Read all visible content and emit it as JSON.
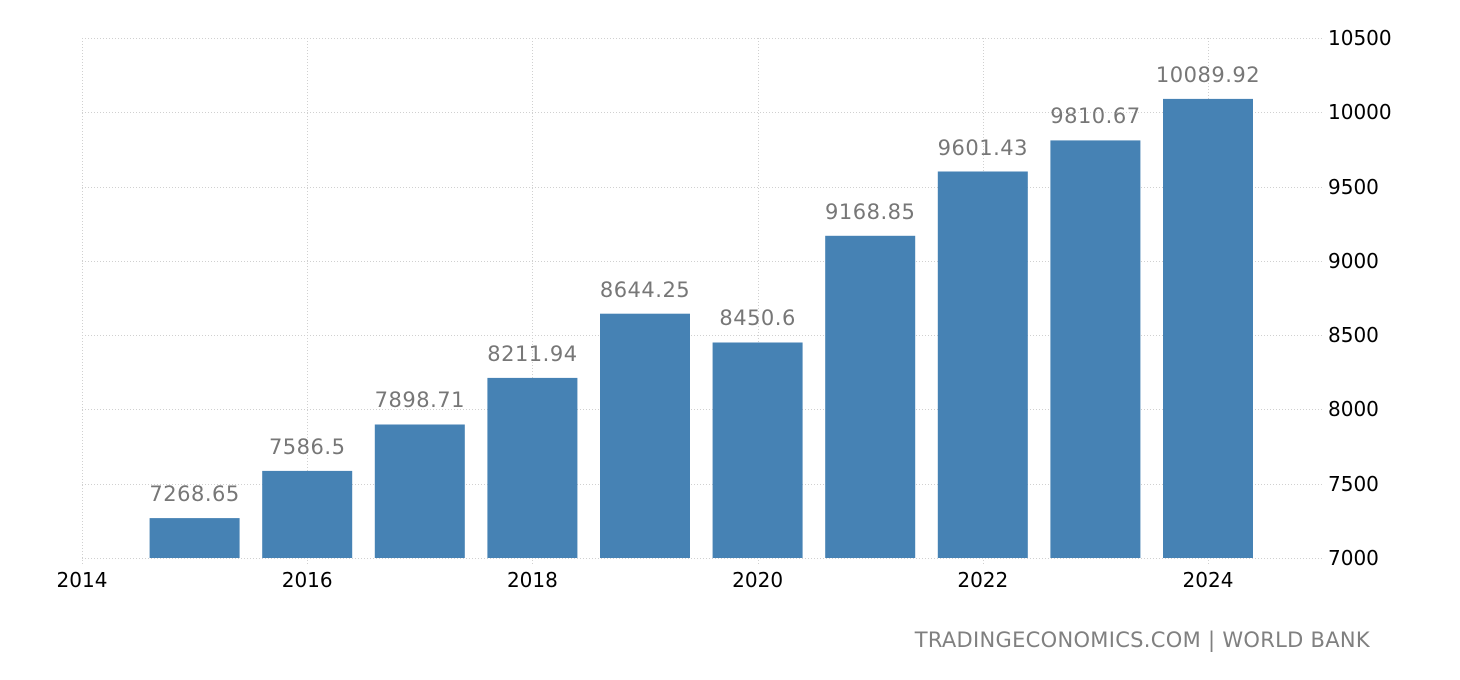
{
  "chart_data": {
    "type": "bar",
    "title": "",
    "xlabel": "",
    "ylabel": "",
    "categories": [
      "2015",
      "2016",
      "2017",
      "2018",
      "2019",
      "2020",
      "2021",
      "2022",
      "2023",
      "2024"
    ],
    "values": [
      7268.65,
      7586.5,
      7898.71,
      8211.94,
      8644.25,
      8450.6,
      9168.85,
      9601.43,
      9810.67,
      10089.92
    ],
    "value_labels": [
      "7268.65",
      "7586.5",
      "7898.71",
      "8211.94",
      "8644.25",
      "8450.6",
      "9168.85",
      "9601.43",
      "9810.67",
      "10089.92"
    ],
    "xticks": [
      "2014",
      "2016",
      "2018",
      "2020",
      "2022",
      "2024"
    ],
    "yticks": [
      "7000",
      "7500",
      "8000",
      "8500",
      "9000",
      "9500",
      "10000",
      "10500"
    ],
    "ylim": [
      7000,
      10500
    ],
    "xlim": [
      2014,
      2025
    ],
    "y_axis_position": "right",
    "grid": true,
    "legend": null,
    "bar_color": "#4682b4",
    "label_color": "#777777"
  },
  "source": "TRADINGECONOMICS.COM | WORLD BANK"
}
